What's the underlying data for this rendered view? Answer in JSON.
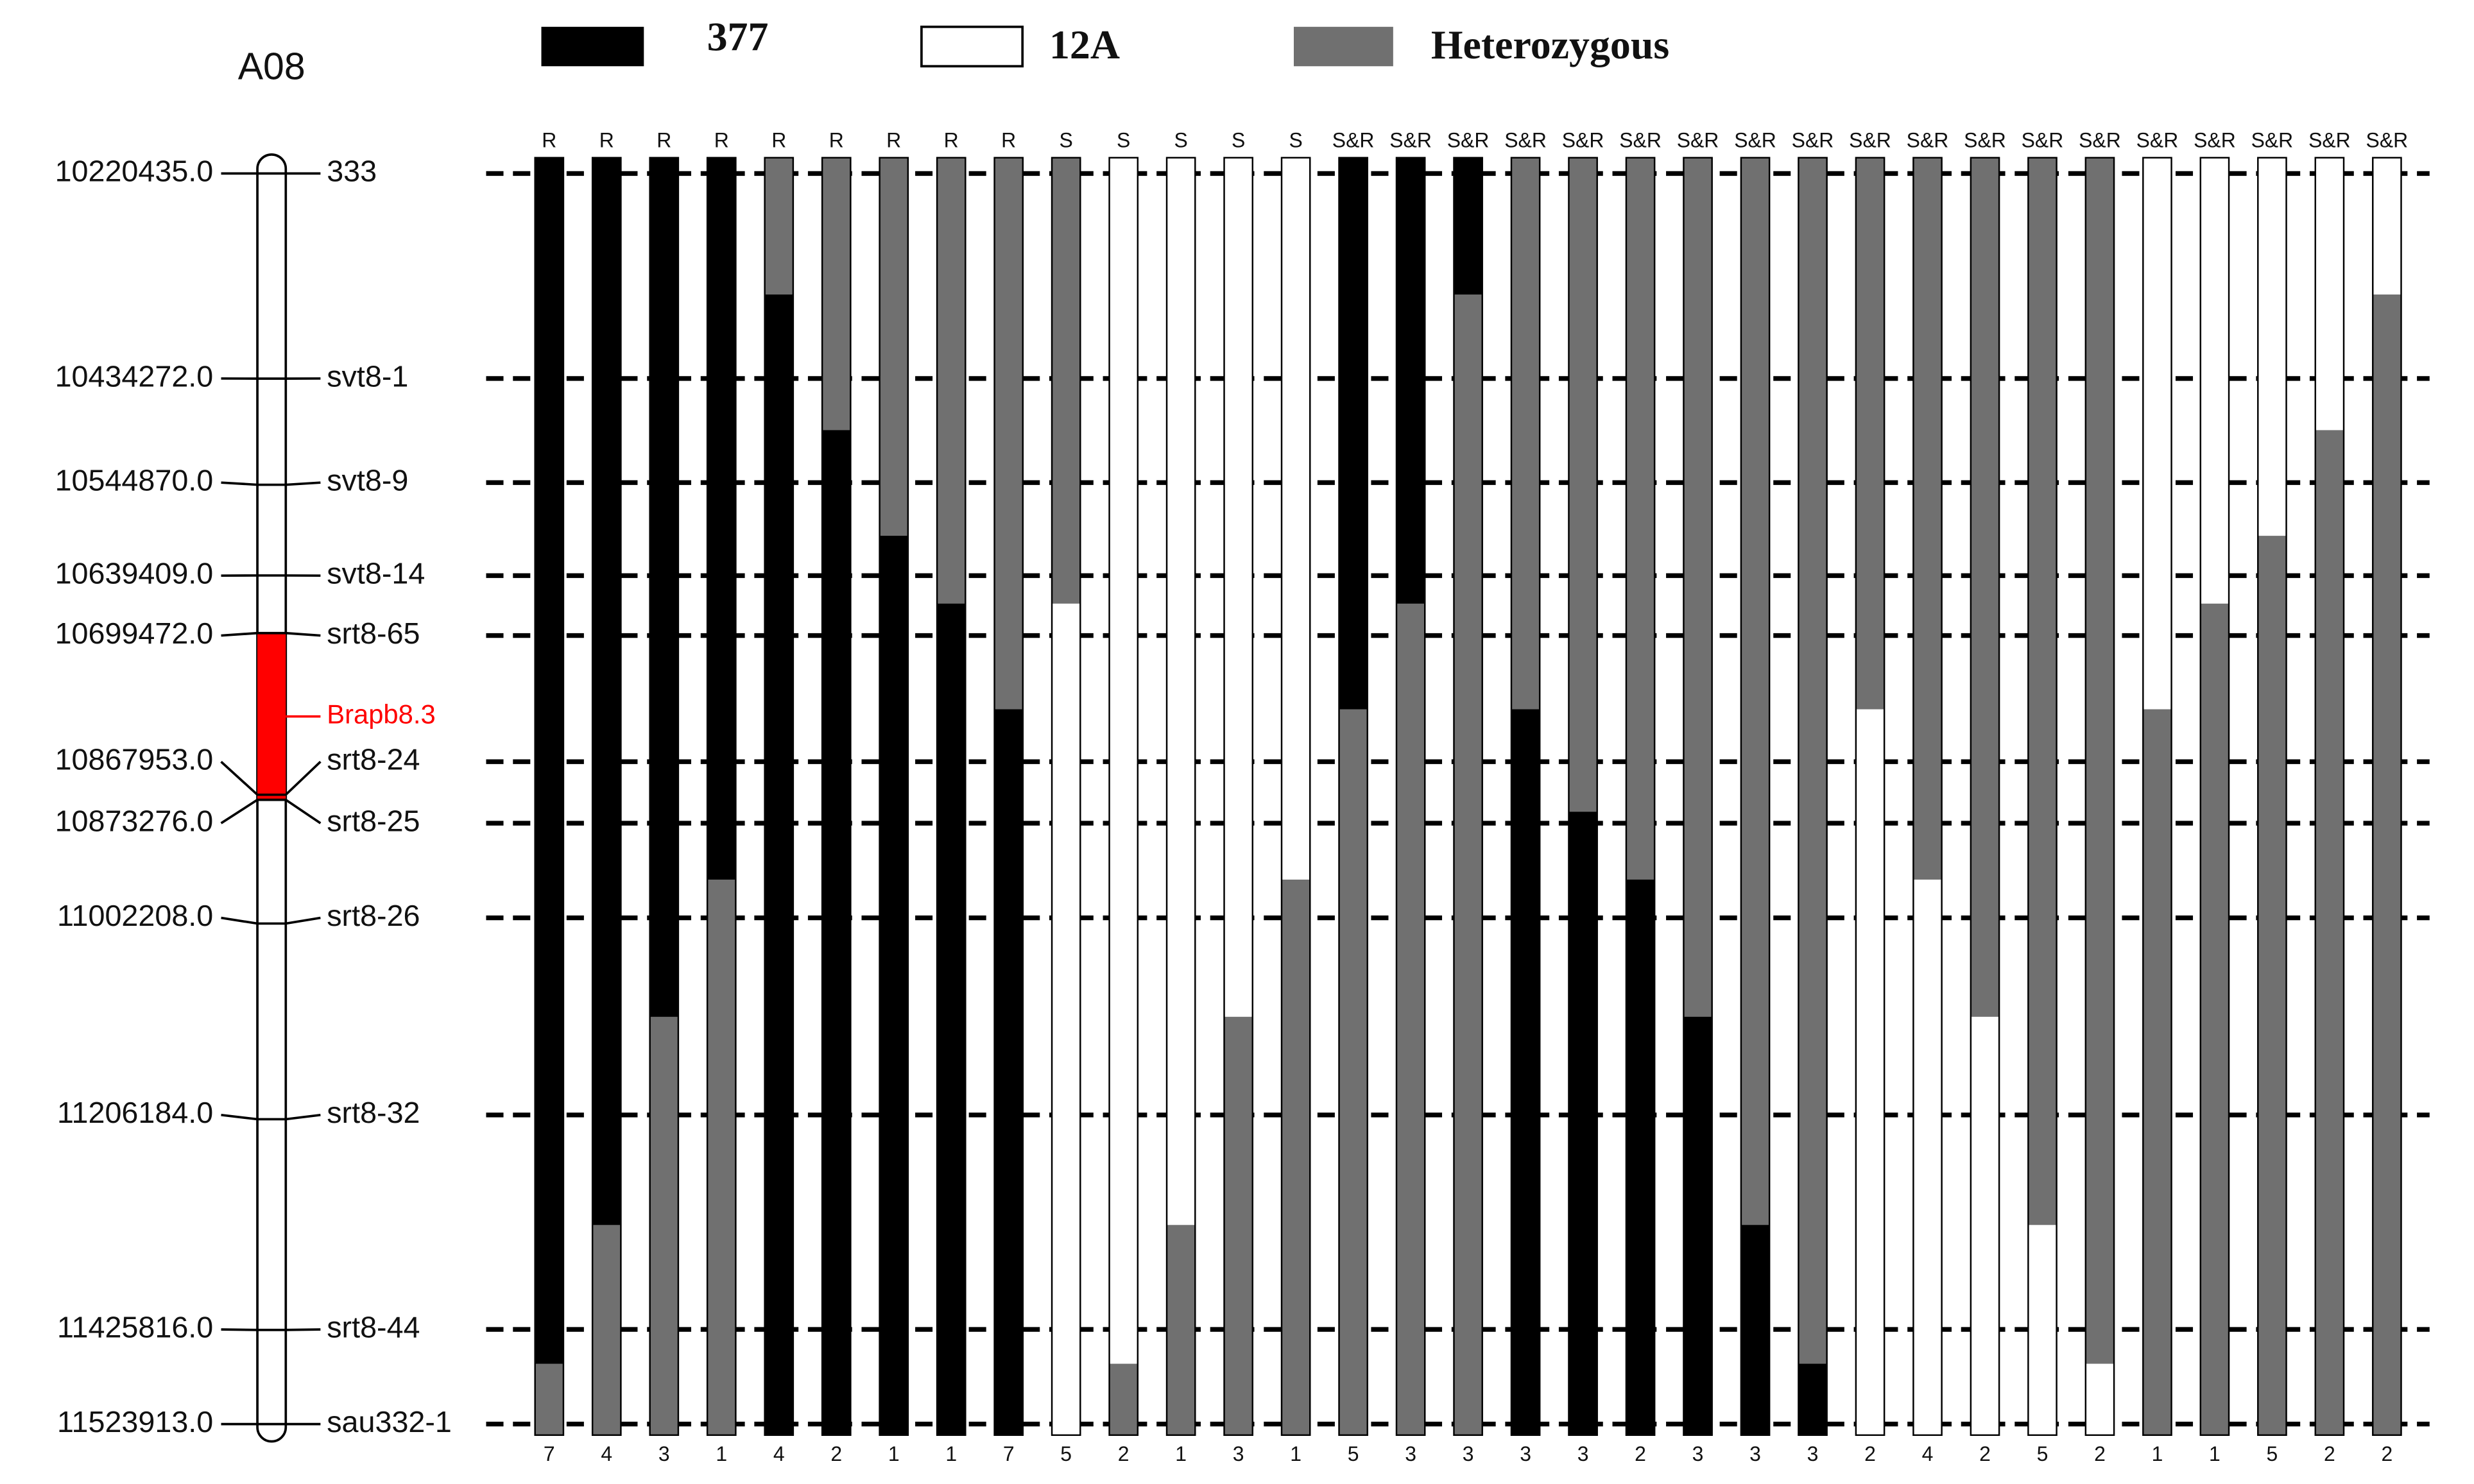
{
  "legend": [
    "377",
    "12A",
    "Heterozygous"
  ],
  "chromosome": {
    "name": "A08",
    "qtl": {
      "label": "Brapb8.3",
      "start": 10699472,
      "end": 10873276
    }
  },
  "markers": [
    {
      "name": "333",
      "position": {
        "value": 10220435,
        "label": "10220435.0"
      }
    },
    {
      "name": "svt8-1",
      "position": {
        "value": 10434272,
        "label": "10434272.0"
      }
    },
    {
      "name": "svt8-9",
      "position": {
        "value": 10544870,
        "label": "10544870.0"
      }
    },
    {
      "name": "svt8-14",
      "position": {
        "value": 10639409,
        "label": "10639409.0"
      }
    },
    {
      "name": "srt8-65",
      "position": {
        "value": 10699472,
        "label": "10699472.0"
      }
    },
    {
      "name": "srt8-24",
      "position": {
        "value": 10867953,
        "label": "10867953.0"
      }
    },
    {
      "name": "srt8-25",
      "position": {
        "value": 10873276,
        "label": "10873276.0"
      }
    },
    {
      "name": "srt8-26",
      "position": {
        "value": 11002208,
        "label": "11002208.0"
      }
    },
    {
      "name": "srt8-32",
      "position": {
        "value": 11206184,
        "label": "11206184.0"
      }
    },
    {
      "name": "srt8-44",
      "position": {
        "value": 11425816,
        "label": "11425816.0"
      }
    },
    {
      "name": "sau332-1",
      "position": {
        "value": 11523913,
        "label": "11523913.0"
      }
    }
  ],
  "columns": [
    {
      "phenotype": "R",
      "count": 7,
      "genotypes": [
        "377",
        "377",
        "377",
        "377",
        "377",
        "377",
        "377",
        "377",
        "377",
        "377",
        "Heterozygous"
      ]
    },
    {
      "phenotype": "R",
      "count": 4,
      "genotypes": [
        "377",
        "377",
        "377",
        "377",
        "377",
        "377",
        "377",
        "377",
        "377",
        "Heterozygous",
        "Heterozygous"
      ]
    },
    {
      "phenotype": "R",
      "count": 3,
      "genotypes": [
        "377",
        "377",
        "377",
        "377",
        "377",
        "377",
        "377",
        "377",
        "Heterozygous",
        "Heterozygous",
        "Heterozygous"
      ]
    },
    {
      "phenotype": "R",
      "count": 1,
      "genotypes": [
        "377",
        "377",
        "377",
        "377",
        "377",
        "377",
        "377",
        "Heterozygous",
        "Heterozygous",
        "Heterozygous",
        "Heterozygous"
      ]
    },
    {
      "phenotype": "R",
      "count": 4,
      "genotypes": [
        "Heterozygous",
        "377",
        "377",
        "377",
        "377",
        "377",
        "377",
        "377",
        "377",
        "377",
        "377"
      ]
    },
    {
      "phenotype": "R",
      "count": 2,
      "genotypes": [
        "Heterozygous",
        "Heterozygous",
        "377",
        "377",
        "377",
        "377",
        "377",
        "377",
        "377",
        "377",
        "377"
      ]
    },
    {
      "phenotype": "R",
      "count": 1,
      "genotypes": [
        "Heterozygous",
        "Heterozygous",
        "Heterozygous",
        "377",
        "377",
        "377",
        "377",
        "377",
        "377",
        "377",
        "377"
      ]
    },
    {
      "phenotype": "R",
      "count": 1,
      "genotypes": [
        "Heterozygous",
        "Heterozygous",
        "Heterozygous",
        "Heterozygous",
        "377",
        "377",
        "377",
        "377",
        "377",
        "377",
        "377"
      ]
    },
    {
      "phenotype": "R",
      "count": 7,
      "genotypes": [
        "Heterozygous",
        "Heterozygous",
        "Heterozygous",
        "Heterozygous",
        "Heterozygous",
        "377",
        "377",
        "377",
        "377",
        "377",
        "377"
      ]
    },
    {
      "phenotype": "S",
      "count": 5,
      "genotypes": [
        "Heterozygous",
        "Heterozygous",
        "Heterozygous",
        "Heterozygous",
        "12A",
        "12A",
        "12A",
        "12A",
        "12A",
        "12A",
        "12A"
      ]
    },
    {
      "phenotype": "S",
      "count": 2,
      "genotypes": [
        "12A",
        "12A",
        "12A",
        "12A",
        "12A",
        "12A",
        "12A",
        "12A",
        "12A",
        "12A",
        "Heterozygous"
      ]
    },
    {
      "phenotype": "S",
      "count": 1,
      "genotypes": [
        "12A",
        "12A",
        "12A",
        "12A",
        "12A",
        "12A",
        "12A",
        "12A",
        "12A",
        "Heterozygous",
        "Heterozygous"
      ]
    },
    {
      "phenotype": "S",
      "count": 3,
      "genotypes": [
        "12A",
        "12A",
        "12A",
        "12A",
        "12A",
        "12A",
        "12A",
        "12A",
        "Heterozygous",
        "Heterozygous",
        "Heterozygous"
      ]
    },
    {
      "phenotype": "S",
      "count": 1,
      "genotypes": [
        "12A",
        "12A",
        "12A",
        "12A",
        "12A",
        "12A",
        "12A",
        "Heterozygous",
        "Heterozygous",
        "Heterozygous",
        "Heterozygous"
      ]
    },
    {
      "phenotype": "S&R",
      "count": 5,
      "genotypes": [
        "377",
        "377",
        "377",
        "377",
        "377",
        "Heterozygous",
        "Heterozygous",
        "Heterozygous",
        "Heterozygous",
        "Heterozygous",
        "Heterozygous"
      ]
    },
    {
      "phenotype": "S&R",
      "count": 3,
      "genotypes": [
        "377",
        "377",
        "377",
        "377",
        "Heterozygous",
        "Heterozygous",
        "Heterozygous",
        "Heterozygous",
        "Heterozygous",
        "Heterozygous",
        "Heterozygous"
      ]
    },
    {
      "phenotype": "S&R",
      "count": 3,
      "genotypes": [
        "377",
        "Heterozygous",
        "Heterozygous",
        "Heterozygous",
        "Heterozygous",
        "Heterozygous",
        "Heterozygous",
        "Heterozygous",
        "Heterozygous",
        "Heterozygous",
        "Heterozygous"
      ]
    },
    {
      "phenotype": "S&R",
      "count": 3,
      "genotypes": [
        "Heterozygous",
        "Heterozygous",
        "Heterozygous",
        "Heterozygous",
        "Heterozygous",
        "377",
        "377",
        "377",
        "377",
        "377",
        "377"
      ]
    },
    {
      "phenotype": "S&R",
      "count": 3,
      "genotypes": [
        "Heterozygous",
        "Heterozygous",
        "Heterozygous",
        "Heterozygous",
        "Heterozygous",
        "Heterozygous",
        "377",
        "377",
        "377",
        "377",
        "377"
      ]
    },
    {
      "phenotype": "S&R",
      "count": 2,
      "genotypes": [
        "Heterozygous",
        "Heterozygous",
        "Heterozygous",
        "Heterozygous",
        "Heterozygous",
        "Heterozygous",
        "Heterozygous",
        "377",
        "377",
        "377",
        "377"
      ]
    },
    {
      "phenotype": "S&R",
      "count": 3,
      "genotypes": [
        "Heterozygous",
        "Heterozygous",
        "Heterozygous",
        "Heterozygous",
        "Heterozygous",
        "Heterozygous",
        "Heterozygous",
        "Heterozygous",
        "377",
        "377",
        "377"
      ]
    },
    {
      "phenotype": "S&R",
      "count": 3,
      "genotypes": [
        "Heterozygous",
        "Heterozygous",
        "Heterozygous",
        "Heterozygous",
        "Heterozygous",
        "Heterozygous",
        "Heterozygous",
        "Heterozygous",
        "Heterozygous",
        "377",
        "377"
      ]
    },
    {
      "phenotype": "S&R",
      "count": 3,
      "genotypes": [
        "Heterozygous",
        "Heterozygous",
        "Heterozygous",
        "Heterozygous",
        "Heterozygous",
        "Heterozygous",
        "Heterozygous",
        "Heterozygous",
        "Heterozygous",
        "Heterozygous",
        "377"
      ]
    },
    {
      "phenotype": "S&R",
      "count": 2,
      "genotypes": [
        "Heterozygous",
        "Heterozygous",
        "Heterozygous",
        "Heterozygous",
        "Heterozygous",
        "12A",
        "12A",
        "12A",
        "12A",
        "12A",
        "12A"
      ]
    },
    {
      "phenotype": "S&R",
      "count": 4,
      "genotypes": [
        "Heterozygous",
        "Heterozygous",
        "Heterozygous",
        "Heterozygous",
        "Heterozygous",
        "Heterozygous",
        "Heterozygous",
        "12A",
        "12A",
        "12A",
        "12A"
      ]
    },
    {
      "phenotype": "S&R",
      "count": 2,
      "genotypes": [
        "Heterozygous",
        "Heterozygous",
        "Heterozygous",
        "Heterozygous",
        "Heterozygous",
        "Heterozygous",
        "Heterozygous",
        "Heterozygous",
        "12A",
        "12A",
        "12A"
      ]
    },
    {
      "phenotype": "S&R",
      "count": 5,
      "genotypes": [
        "Heterozygous",
        "Heterozygous",
        "Heterozygous",
        "Heterozygous",
        "Heterozygous",
        "Heterozygous",
        "Heterozygous",
        "Heterozygous",
        "Heterozygous",
        "12A",
        "12A"
      ]
    },
    {
      "phenotype": "S&R",
      "count": 2,
      "genotypes": [
        "Heterozygous",
        "Heterozygous",
        "Heterozygous",
        "Heterozygous",
        "Heterozygous",
        "Heterozygous",
        "Heterozygous",
        "Heterozygous",
        "Heterozygous",
        "Heterozygous",
        "12A"
      ]
    },
    {
      "phenotype": "S&R",
      "count": 1,
      "genotypes": [
        "12A",
        "12A",
        "12A",
        "12A",
        "12A",
        "Heterozygous",
        "Heterozygous",
        "Heterozygous",
        "Heterozygous",
        "Heterozygous",
        "Heterozygous"
      ]
    },
    {
      "phenotype": "S&R",
      "count": 1,
      "genotypes": [
        "12A",
        "12A",
        "12A",
        "12A",
        "Heterozygous",
        "Heterozygous",
        "Heterozygous",
        "Heterozygous",
        "Heterozygous",
        "Heterozygous",
        "Heterozygous"
      ]
    },
    {
      "phenotype": "S&R",
      "count": 5,
      "genotypes": [
        "12A",
        "12A",
        "12A",
        "Heterozygous",
        "Heterozygous",
        "Heterozygous",
        "Heterozygous",
        "Heterozygous",
        "Heterozygous",
        "Heterozygous",
        "Heterozygous"
      ]
    },
    {
      "phenotype": "S&R",
      "count": 2,
      "genotypes": [
        "12A",
        "12A",
        "Heterozygous",
        "Heterozygous",
        "Heterozygous",
        "Heterozygous",
        "Heterozygous",
        "Heterozygous",
        "Heterozygous",
        "Heterozygous",
        "Heterozygous"
      ]
    },
    {
      "phenotype": "S&R",
      "count": 2,
      "genotypes": [
        "12A",
        "Heterozygous",
        "Heterozygous",
        "Heterozygous",
        "Heterozygous",
        "Heterozygous",
        "Heterozygous",
        "Heterozygous",
        "Heterozygous",
        "Heterozygous",
        "Heterozygous"
      ]
    }
  ]
}
